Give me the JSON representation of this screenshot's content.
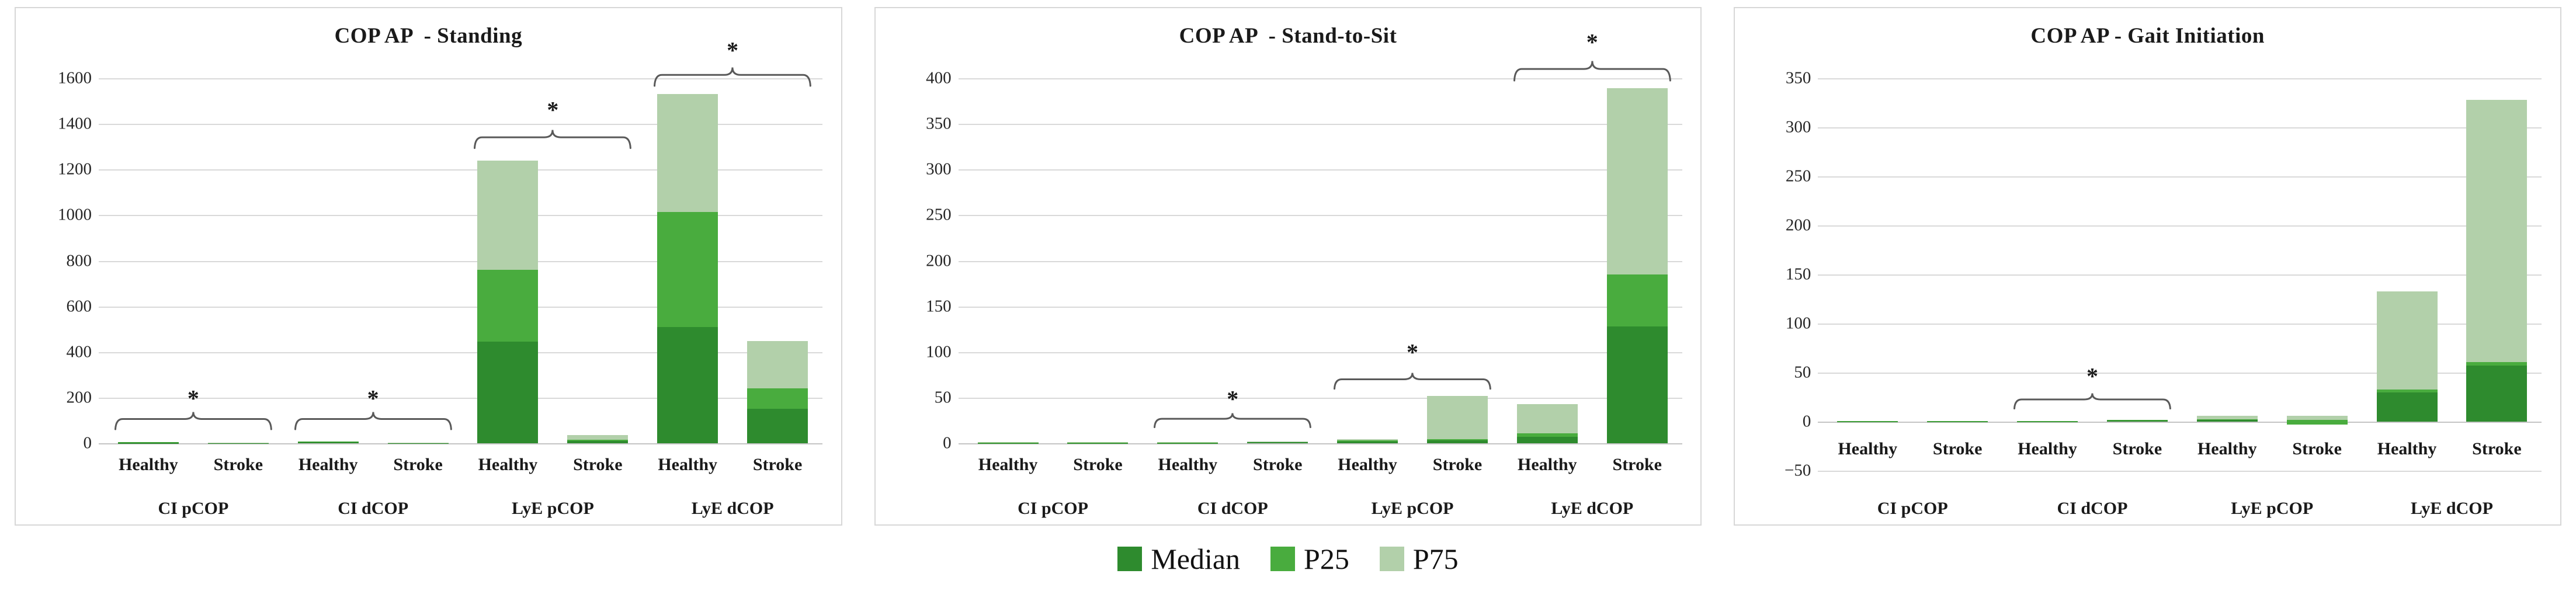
{
  "legend": {
    "items": [
      {
        "name": "median",
        "label": "Median",
        "color": "#2e8b2e"
      },
      {
        "name": "p25",
        "label": "P25",
        "color": "#49ac3e"
      },
      {
        "name": "p75",
        "label": "P75",
        "color": "#b2d0aa"
      }
    ]
  },
  "colors": {
    "median": "#2e8b2e",
    "p25": "#49ac3e",
    "p75": "#b2d0aa",
    "gridline": "#d9d9d9",
    "brace": "#595959",
    "panel_border": "#d7d7d7"
  },
  "chart_data": [
    {
      "type": "bar",
      "stacked": true,
      "title": "COP AP  - Standing",
      "ylim": [
        0,
        1600
      ],
      "grid": true,
      "legend_position": "bottom-shared",
      "series": [
        "Median",
        "P25",
        "P75"
      ],
      "stack_order_bottom_to_top": [
        "Median",
        "P25",
        "P75"
      ],
      "groups": [
        "CI pCOP",
        "CI dCOP",
        "LyE pCOP",
        "LyE dCOP"
      ],
      "subjects": [
        "Healthy",
        "Stroke"
      ],
      "yticks": [
        {
          "v": 0,
          "label": "0"
        },
        {
          "v": 200,
          "label": "200"
        },
        {
          "v": 400,
          "label": "400"
        },
        {
          "v": 600,
          "label": "600"
        },
        {
          "v": 800,
          "label": "800"
        },
        {
          "v": 1000,
          "label": "1000"
        },
        {
          "v": 1200,
          "label": "1200"
        },
        {
          "v": 1400,
          "label": "1400"
        },
        {
          "v": 1600,
          "label": "1600"
        }
      ],
      "bars": [
        {
          "group": "CI pCOP",
          "subject": "Healthy",
          "base": 0,
          "median": 2,
          "p25": 4,
          "p75": 5
        },
        {
          "group": "CI pCOP",
          "subject": "Stroke",
          "base": 0,
          "median": 0.3,
          "p25": 0.6,
          "p75": 1.5
        },
        {
          "group": "CI dCOP",
          "subject": "Healthy",
          "base": 0,
          "median": 4,
          "p25": 6.5,
          "p75": 8
        },
        {
          "group": "CI dCOP",
          "subject": "Stroke",
          "base": 0,
          "median": 0.5,
          "p25": 1,
          "p75": 2
        },
        {
          "group": "LyE pCOP",
          "subject": "Healthy",
          "base": 0,
          "median": 445,
          "p25": 760,
          "p75": 1240
        },
        {
          "group": "LyE pCOP",
          "subject": "Stroke",
          "base": 0,
          "median": 10,
          "p25": 15,
          "p75": 35
        },
        {
          "group": "LyE dCOP",
          "subject": "Healthy",
          "base": 0,
          "median": 510,
          "p25": 1015,
          "p75": 1530
        },
        {
          "group": "LyE dCOP",
          "subject": "Stroke",
          "base": 0,
          "median": 150,
          "p25": 240,
          "p75": 447
        }
      ],
      "significance": [
        {
          "group": "CI pCOP",
          "label": "*",
          "brace_y": [
            60,
            142
          ],
          "star_y": 188
        },
        {
          "group": "CI dCOP",
          "label": "*",
          "brace_y": [
            60,
            142
          ],
          "star_y": 188
        },
        {
          "group": "LyE pCOP",
          "label": "*",
          "brace_y": [
            1292,
            1378
          ],
          "star_y": 1452
        },
        {
          "group": "LyE dCOP",
          "label": "*",
          "brace_y": [
            1565,
            1652
          ],
          "star_y": 1712
        }
      ]
    },
    {
      "type": "bar",
      "stacked": true,
      "title": "COP AP  - Stand-to-Sit",
      "ylim": [
        0,
        400
      ],
      "grid": true,
      "legend_position": "bottom-shared",
      "series": [
        "Median",
        "P25",
        "P75"
      ],
      "stack_order_bottom_to_top": [
        "Median",
        "P25",
        "P75"
      ],
      "groups": [
        "CI pCOP",
        "CI dCOP",
        "LyE pCOP",
        "LyE dCOP"
      ],
      "subjects": [
        "Healthy",
        "Stroke"
      ],
      "yticks": [
        {
          "v": 0,
          "label": "0"
        },
        {
          "v": 50,
          "label": "50"
        },
        {
          "v": 100,
          "label": "100"
        },
        {
          "v": 150,
          "label": "150"
        },
        {
          "v": 200,
          "label": "200"
        },
        {
          "v": 250,
          "label": "250"
        },
        {
          "v": 300,
          "label": "300"
        },
        {
          "v": 350,
          "label": "350"
        },
        {
          "v": 400,
          "label": "400"
        }
      ],
      "bars": [
        {
          "group": "CI pCOP",
          "subject": "Healthy",
          "base": 0,
          "median": 0.3,
          "p25": 0.6,
          "p75": 1
        },
        {
          "group": "CI pCOP",
          "subject": "Stroke",
          "base": 0,
          "median": 0.3,
          "p25": 0.6,
          "p75": 1
        },
        {
          "group": "CI dCOP",
          "subject": "Healthy",
          "base": 0,
          "median": 0.3,
          "p25": 0.6,
          "p75": 1
        },
        {
          "group": "CI dCOP",
          "subject": "Stroke",
          "base": 0,
          "median": 1.2,
          "p25": 1.6,
          "p75": 2
        },
        {
          "group": "LyE pCOP",
          "subject": "Healthy",
          "base": 0,
          "median": 2,
          "p25": 3.5,
          "p75": 4.5
        },
        {
          "group": "LyE pCOP",
          "subject": "Stroke",
          "base": 0,
          "median": 3,
          "p25": 4.5,
          "p75": 52
        },
        {
          "group": "LyE dCOP",
          "subject": "Healthy",
          "base": 0,
          "median": 7,
          "p25": 11,
          "p75": 43
        },
        {
          "group": "LyE dCOP",
          "subject": "Stroke",
          "base": 0,
          "median": 128,
          "p25": 185,
          "p75": 389
        }
      ],
      "significance": [
        {
          "group": "CI dCOP",
          "label": "*",
          "brace_y": [
            17,
            34
          ],
          "star_y": 46
        },
        {
          "group": "LyE pCOP",
          "label": "*",
          "brace_y": [
            59,
            78
          ],
          "star_y": 97
        },
        {
          "group": "LyE dCOP",
          "label": "*",
          "brace_y": [
            397,
            420
          ],
          "star_y": 437
        }
      ]
    },
    {
      "type": "bar",
      "stacked": true,
      "title": "COP AP - Gait Initiation",
      "ylim": [
        -50,
        350
      ],
      "grid": true,
      "legend_position": "bottom-shared",
      "series": [
        "Median",
        "P25",
        "P75"
      ],
      "stack_order_bottom_to_top": [
        "Median",
        "P25",
        "P75"
      ],
      "groups": [
        "CI pCOP",
        "CI dCOP",
        "LyE pCOP",
        "LyE dCOP"
      ],
      "subjects": [
        "Healthy",
        "Stroke"
      ],
      "yticks": [
        {
          "v": -50,
          "label": "−50"
        },
        {
          "v": 0,
          "label": "0"
        },
        {
          "v": 50,
          "label": "50"
        },
        {
          "v": 100,
          "label": "100"
        },
        {
          "v": 150,
          "label": "150"
        },
        {
          "v": 200,
          "label": "200"
        },
        {
          "v": 250,
          "label": "250"
        },
        {
          "v": 300,
          "label": "300"
        },
        {
          "v": 350,
          "label": "350"
        }
      ],
      "bars": [
        {
          "group": "CI pCOP",
          "subject": "Healthy",
          "base": 0,
          "median": 0.2,
          "p25": 0.4,
          "p75": 0.8
        },
        {
          "group": "CI pCOP",
          "subject": "Stroke",
          "base": 0,
          "median": 0.2,
          "p25": 0.4,
          "p75": 0.8
        },
        {
          "group": "CI dCOP",
          "subject": "Healthy",
          "base": 0,
          "median": 0.2,
          "p25": 0.4,
          "p75": 0.8
        },
        {
          "group": "CI dCOP",
          "subject": "Stroke",
          "base": 0,
          "median": 1.2,
          "p25": 1.5,
          "p75": 1.8
        },
        {
          "group": "LyE pCOP",
          "subject": "Healthy",
          "base": 0,
          "median": 1.5,
          "p25": 2.2,
          "p75": 6
        },
        {
          "group": "LyE pCOP",
          "subject": "Stroke",
          "base": -3,
          "median": -3,
          "p25": 1.5,
          "p75": 6
        },
        {
          "group": "LyE dCOP",
          "subject": "Healthy",
          "base": 0,
          "median": 30,
          "p25": 33,
          "p75": 133
        },
        {
          "group": "LyE dCOP",
          "subject": "Stroke",
          "base": 0,
          "median": 57,
          "p25": 61,
          "p75": 328
        }
      ],
      "significance": [
        {
          "group": "CI dCOP",
          "label": "*",
          "brace_y": [
            13,
            30
          ],
          "star_y": 44
        }
      ]
    }
  ]
}
